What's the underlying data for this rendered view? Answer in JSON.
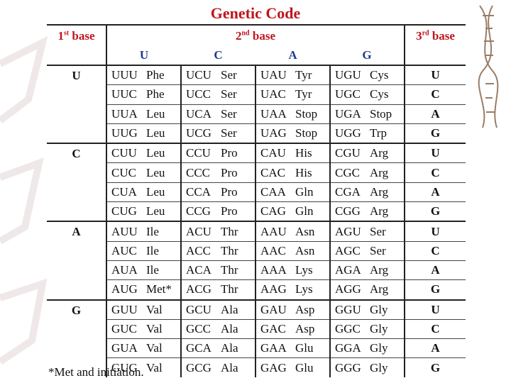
{
  "title": "Genetic Code",
  "headers": {
    "first_base": "1st base",
    "second_base": "2nd base",
    "third_base": "3rd base",
    "second_columns": [
      "U",
      "C",
      "A",
      "G"
    ]
  },
  "groups": [
    {
      "base": "U",
      "rows": [
        {
          "cells": [
            [
              "UUU",
              "Phe"
            ],
            [
              "UCU",
              "Ser"
            ],
            [
              "UAU",
              "Tyr"
            ],
            [
              "UGU",
              "Cys"
            ]
          ],
          "third": "U"
        },
        {
          "cells": [
            [
              "UUC",
              "Phe"
            ],
            [
              "UCC",
              "Ser"
            ],
            [
              "UAC",
              "Tyr"
            ],
            [
              "UGC",
              "Cys"
            ]
          ],
          "third": "C"
        },
        {
          "cells": [
            [
              "UUA",
              "Leu"
            ],
            [
              "UCA",
              "Ser"
            ],
            [
              "UAA",
              "Stop"
            ],
            [
              "UGA",
              "Stop"
            ]
          ],
          "third": "A"
        },
        {
          "cells": [
            [
              "UUG",
              "Leu"
            ],
            [
              "UCG",
              "Ser"
            ],
            [
              "UAG",
              "Stop"
            ],
            [
              "UGG",
              "Trp"
            ]
          ],
          "third": "G"
        }
      ]
    },
    {
      "base": "C",
      "rows": [
        {
          "cells": [
            [
              "CUU",
              "Leu"
            ],
            [
              "CCU",
              "Pro"
            ],
            [
              "CAU",
              "His"
            ],
            [
              "CGU",
              "Arg"
            ]
          ],
          "third": "U"
        },
        {
          "cells": [
            [
              "CUC",
              "Leu"
            ],
            [
              "CCC",
              "Pro"
            ],
            [
              "CAC",
              "His"
            ],
            [
              "CGC",
              "Arg"
            ]
          ],
          "third": "C"
        },
        {
          "cells": [
            [
              "CUA",
              "Leu"
            ],
            [
              "CCA",
              "Pro"
            ],
            [
              "CAA",
              "Gln"
            ],
            [
              "CGA",
              "Arg"
            ]
          ],
          "third": "A"
        },
        {
          "cells": [
            [
              "CUG",
              "Leu"
            ],
            [
              "CCG",
              "Pro"
            ],
            [
              "CAG",
              "Gln"
            ],
            [
              "CGG",
              "Arg"
            ]
          ],
          "third": "G"
        }
      ]
    },
    {
      "base": "A",
      "rows": [
        {
          "cells": [
            [
              "AUU",
              "Ile"
            ],
            [
              "ACU",
              "Thr"
            ],
            [
              "AAU",
              "Asn"
            ],
            [
              "AGU",
              "Ser"
            ]
          ],
          "third": "U"
        },
        {
          "cells": [
            [
              "AUC",
              "Ile"
            ],
            [
              "ACC",
              "Thr"
            ],
            [
              "AAC",
              "Asn"
            ],
            [
              "AGC",
              "Ser"
            ]
          ],
          "third": "C"
        },
        {
          "cells": [
            [
              "AUA",
              "Ile"
            ],
            [
              "ACA",
              "Thr"
            ],
            [
              "AAA",
              "Lys"
            ],
            [
              "AGA",
              "Arg"
            ]
          ],
          "third": "A"
        },
        {
          "cells": [
            [
              "AUG",
              "Met*"
            ],
            [
              "ACG",
              "Thr"
            ],
            [
              "AAG",
              "Lys"
            ],
            [
              "AGG",
              "Arg"
            ]
          ],
          "third": "G"
        }
      ]
    },
    {
      "base": "G",
      "rows": [
        {
          "cells": [
            [
              "GUU",
              "Val"
            ],
            [
              "GCU",
              "Ala"
            ],
            [
              "GAU",
              "Asp"
            ],
            [
              "GGU",
              "Gly"
            ]
          ],
          "third": "U"
        },
        {
          "cells": [
            [
              "GUC",
              "Val"
            ],
            [
              "GCC",
              "Ala"
            ],
            [
              "GAC",
              "Asp"
            ],
            [
              "GGC",
              "Gly"
            ]
          ],
          "third": "C"
        },
        {
          "cells": [
            [
              "GUA",
              "Val"
            ],
            [
              "GCA",
              "Ala"
            ],
            [
              "GAA",
              "Glu"
            ],
            [
              "GGA",
              "Gly"
            ]
          ],
          "third": "A"
        },
        {
          "cells": [
            [
              "GUG",
              "Val"
            ],
            [
              "GCG",
              "Ala"
            ],
            [
              "GAG",
              "Glu"
            ],
            [
              "GGG",
              "Gly"
            ]
          ],
          "third": "G"
        }
      ]
    }
  ],
  "footnote": "*Met and initiation.",
  "colors": {
    "title": "#c0141c",
    "base_letters": "#1f3b8f"
  }
}
